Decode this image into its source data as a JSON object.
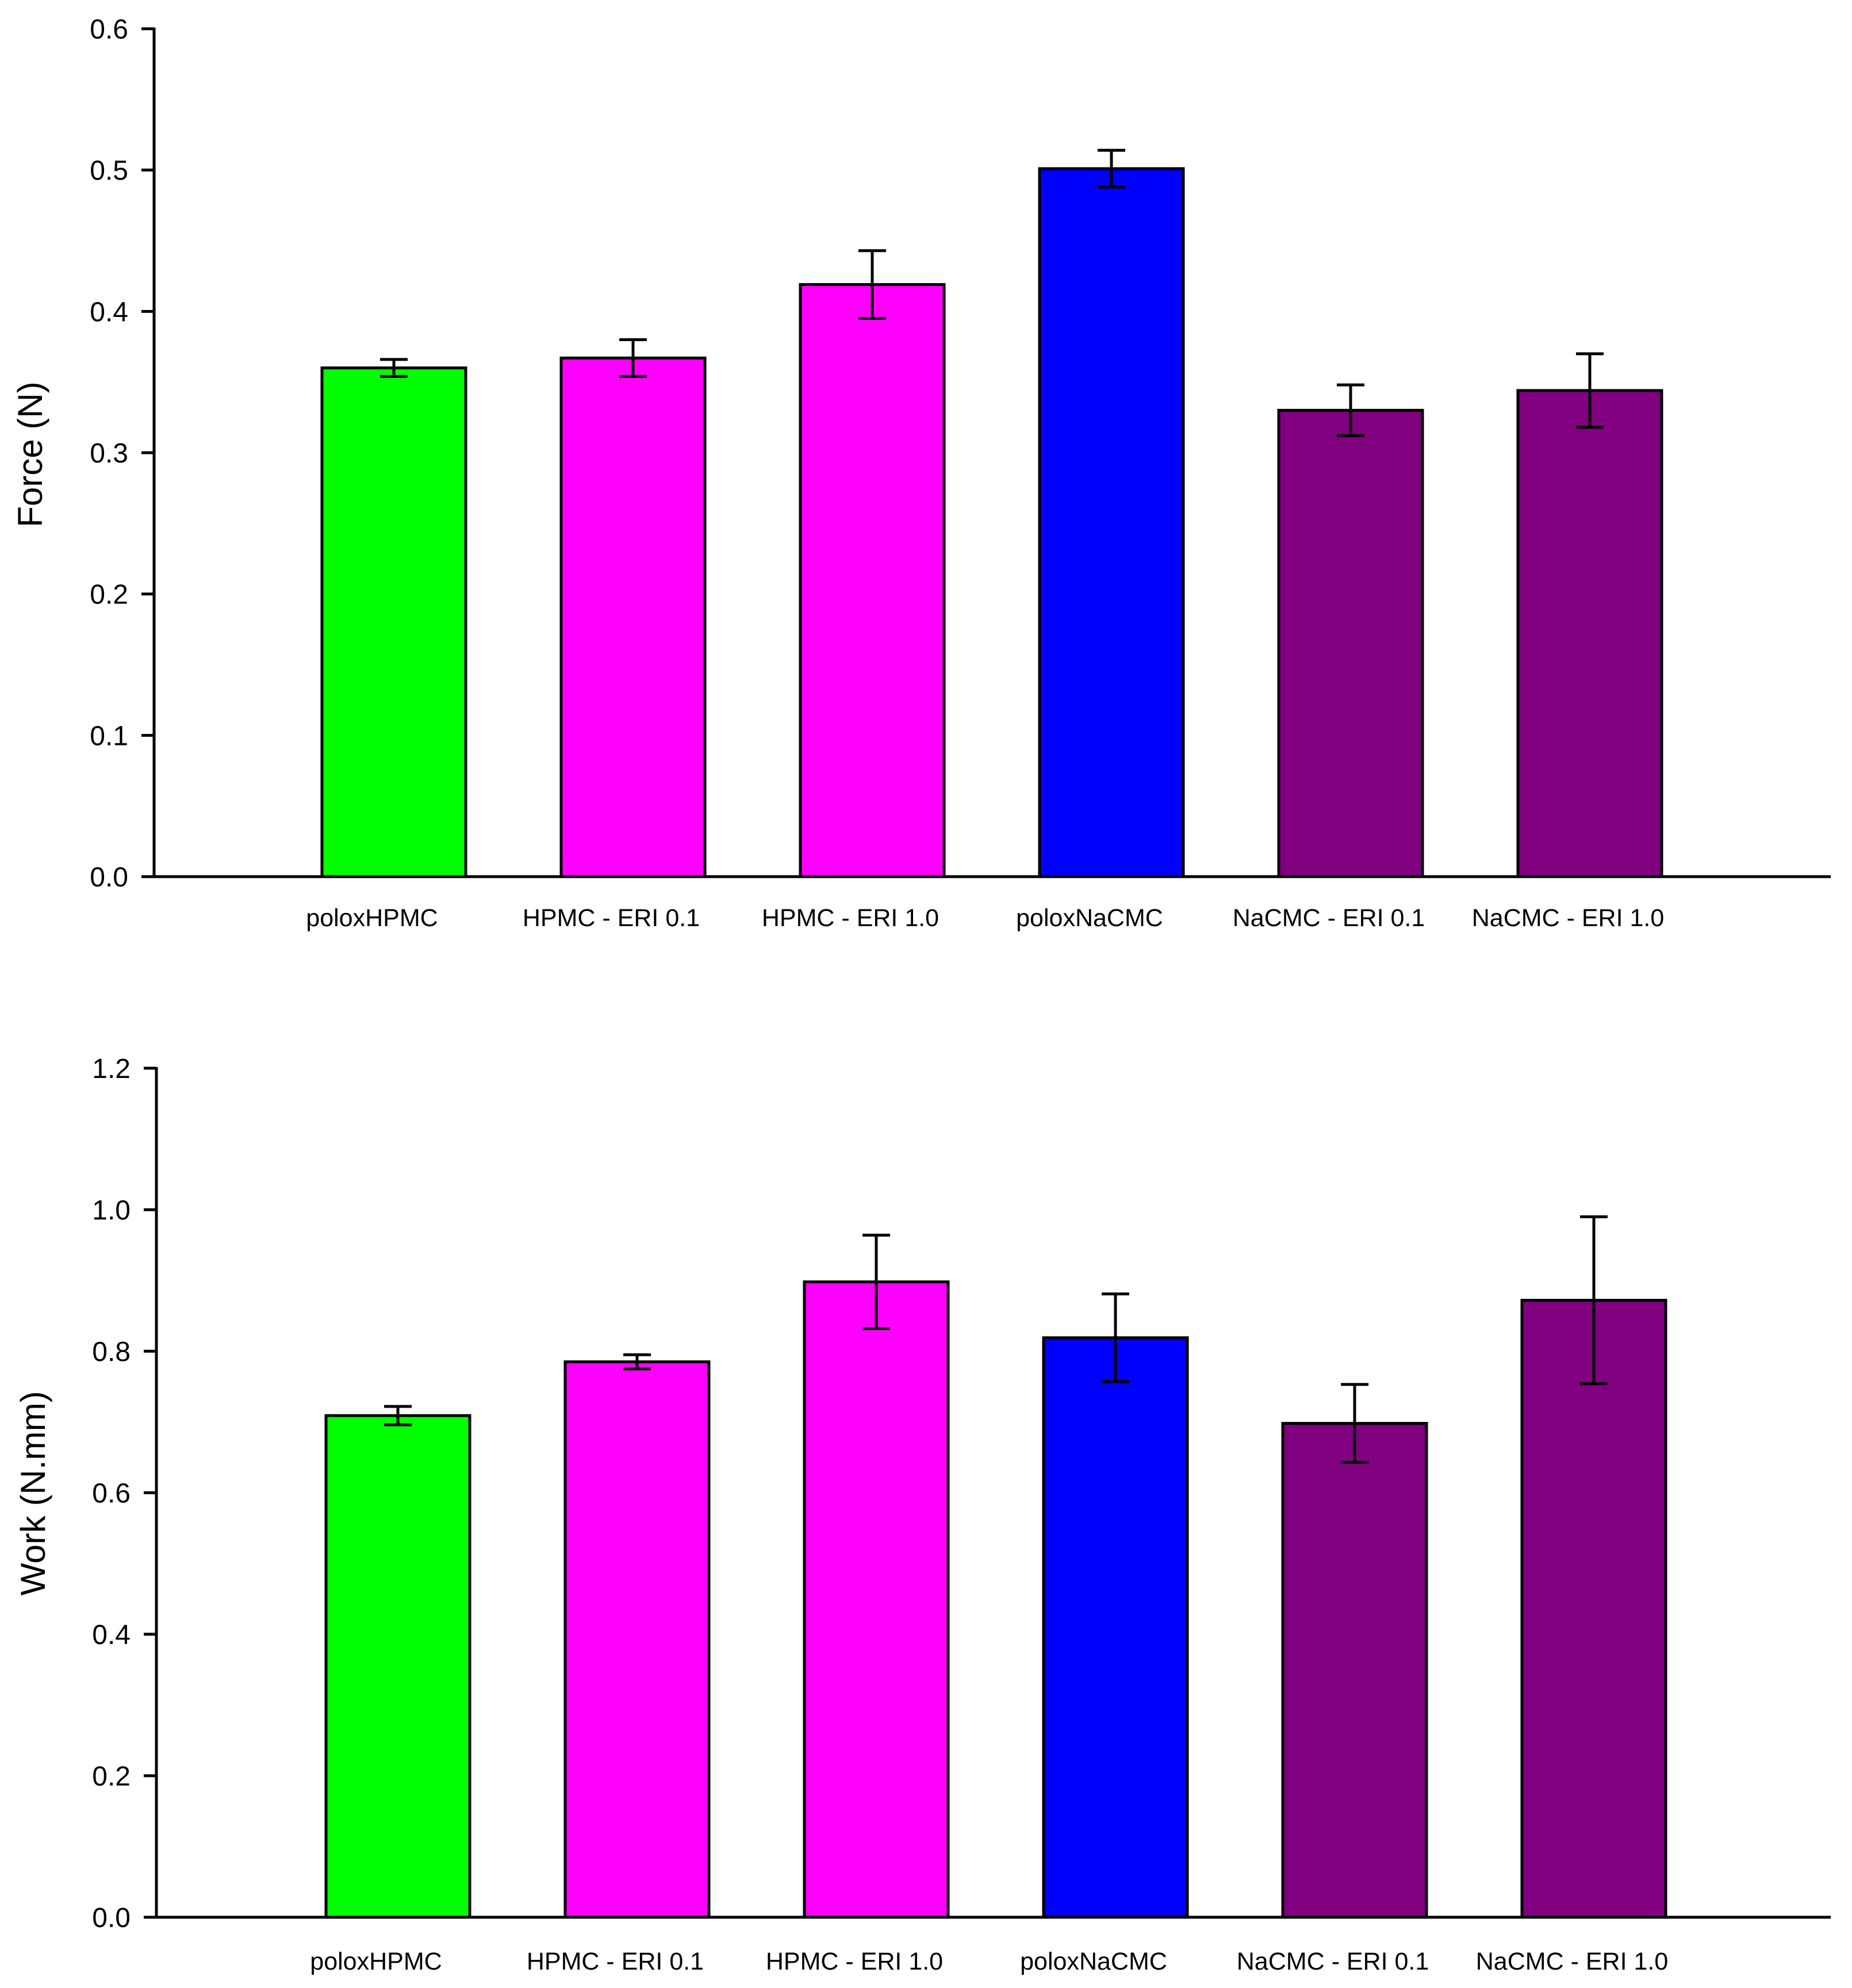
{
  "colors": {
    "poloxHPMC": "#00ff00",
    "HPMC": "#ff00ff",
    "poloxNaCMC": "#0000ff",
    "NaCMC": "#800080",
    "outline": "#000000",
    "background": "#ffffff"
  },
  "chart_data": [
    {
      "type": "bar",
      "title": "",
      "xlabel": "",
      "ylabel": "Force (N)",
      "ylim": [
        0,
        0.6
      ],
      "yticks": [
        "0.0",
        "0.1",
        "0.2",
        "0.3",
        "0.4",
        "0.5",
        "0.6"
      ],
      "categories": [
        "poloxHPMC",
        "HPMC - ERI 0.1",
        "HPMC - ERI 1.0",
        "poloxNaCMC",
        "NaCMC - ERI 0.1",
        "NaCMC - ERI 1.0"
      ],
      "values": [
        0.36,
        0.367,
        0.419,
        0.501,
        0.33,
        0.344
      ],
      "errors": [
        0.006,
        0.013,
        0.024,
        0.013,
        0.018,
        0.026
      ],
      "bar_colors": [
        "#00ff00",
        "#ff00ff",
        "#ff00ff",
        "#0000ff",
        "#800080",
        "#800080"
      ],
      "grid": false,
      "legend": "none"
    },
    {
      "type": "bar",
      "title": "",
      "xlabel": "",
      "ylabel": "Work (N.mm)",
      "ylim": [
        0,
        1.2
      ],
      "yticks": [
        "0.0",
        "0.2",
        "0.4",
        "0.6",
        "0.8",
        "1.0",
        "1.2"
      ],
      "categories": [
        "poloxHPMC",
        "HPMC - ERI 0.1",
        "HPMC - ERI 1.0",
        "poloxNaCMC",
        "NaCMC - ERI 0.1",
        "NaCMC - ERI 1.0"
      ],
      "values": [
        0.709,
        0.785,
        0.898,
        0.819,
        0.698,
        0.872
      ],
      "errors": [
        0.013,
        0.01,
        0.066,
        0.062,
        0.055,
        0.118
      ],
      "bar_colors": [
        "#00ff00",
        "#ff00ff",
        "#ff00ff",
        "#0000ff",
        "#800080",
        "#800080"
      ],
      "grid": false,
      "legend": "none"
    }
  ]
}
